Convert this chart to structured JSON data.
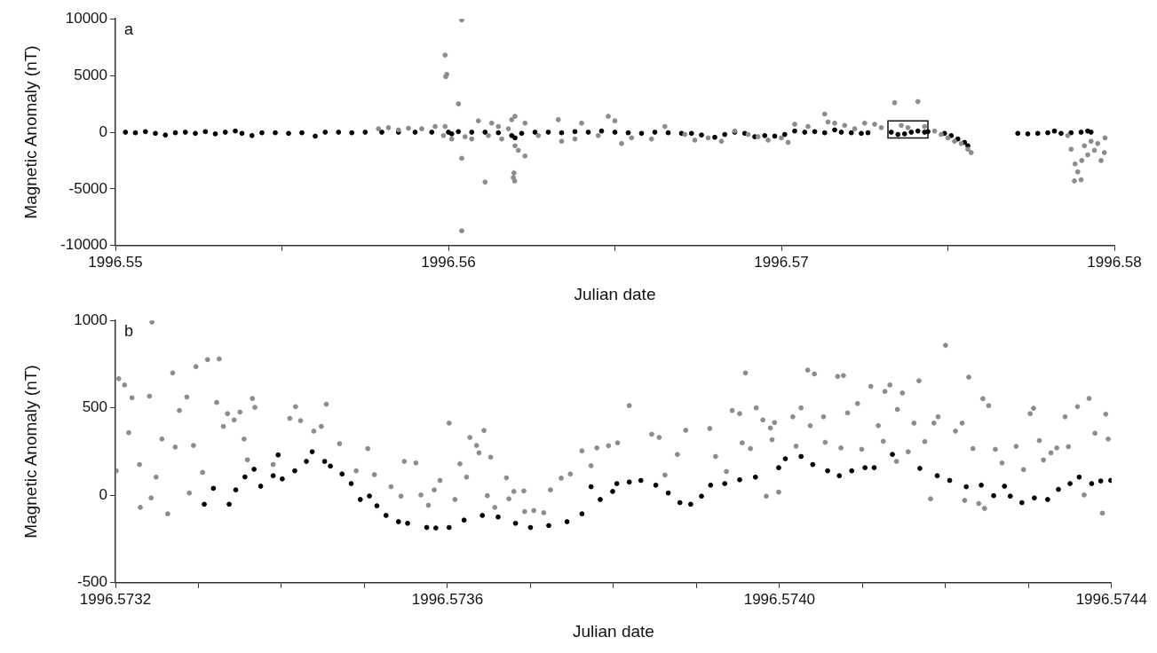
{
  "chart_data": [
    {
      "type": "scatter",
      "xlabel": "Julian date",
      "ylabel": "Magnetic Anomaly (nT)",
      "annotations": [
        "a"
      ],
      "marker": "circle",
      "legend": false,
      "grid": false,
      "xlim": [
        1996.55,
        1996.58
      ],
      "xticks": [
        1996.55,
        {
          "value": 1996.555,
          "label": null
        },
        1996.56,
        {
          "value": 1996.565,
          "label": null
        },
        1996.57,
        {
          "value": 1996.575,
          "label": null
        },
        1996.58
      ],
      "ylim": [
        -10000,
        10000
      ],
      "yticks": [
        -10000,
        -5000,
        0,
        5000,
        10000
      ],
      "series": [
        {
          "color": "#8c8c8c",
          "x": [
            1996.5579,
            1996.5582,
            1996.5585,
            1996.5588,
            1996.5592,
            1996.5596,
            1996.5599,
            1996.55992,
            1996.55995,
            1996.5599,
            1996.55985,
            1996.5603,
            1996.5604,
            1996.5604,
            1996.5604,
            1996.5601,
            1996.5605,
            1996.5607,
            1996.5609,
            1996.5611,
            1996.5612,
            1996.5613,
            1996.5615,
            1996.5616,
            1996.5618,
            1996.5619,
            1996.562,
            1996.56195,
            1996.56197,
            1996.56199,
            1996.562,
            1996.5621,
            1996.5623,
            1996.5623,
            1996.5627,
            1996.5633,
            1996.5634,
            1996.5638,
            1996.564,
            1996.5645,
            1996.5648,
            1996.565,
            1996.5652,
            1996.5655,
            1996.5661,
            1996.5665,
            1996.5671,
            1996.5674,
            1996.5678,
            1996.5682,
            1996.5686,
            1996.569,
            1996.5693,
            1996.5696,
            1996.57,
            1996.5702,
            1996.5704,
            1996.5708,
            1996.5713,
            1996.5714,
            1996.5716,
            1996.5719,
            1996.5722,
            1996.5725,
            1996.5728,
            1996.573,
            1996.5734,
            1996.5736,
            1996.5738,
            1996.5741,
            1996.5743,
            1996.5746,
            1996.5748,
            1996.575,
            1996.5752,
            1996.5754,
            1996.5756,
            1996.5757,
            1996.5786,
            1996.5787,
            1996.5788,
            1996.57882,
            1996.5789,
            1996.579,
            1996.57902,
            1996.5791,
            1996.5792,
            1996.5793,
            1996.5794,
            1996.5795,
            1996.5796,
            1996.5797,
            1996.57972
          ],
          "values": [
            300,
            400,
            200,
            350,
            300,
            500,
            6800,
            4900,
            5100,
            500,
            -300,
            2500,
            9900,
            -8700,
            -2300,
            -600,
            -400,
            -600,
            1000,
            -4400,
            -300,
            800,
            500,
            -600,
            300,
            1100,
            1400,
            -4000,
            -3600,
            -4300,
            -1200,
            -1600,
            800,
            -2100,
            -300,
            1100,
            -800,
            -600,
            800,
            -300,
            1400,
            1000,
            -1000,
            -500,
            -600,
            500,
            -200,
            -700,
            -500,
            -800,
            100,
            -200,
            -400,
            -700,
            -500,
            -900,
            700,
            500,
            1600,
            900,
            800,
            600,
            300,
            800,
            700,
            400,
            2600,
            600,
            400,
            2700,
            500,
            100,
            -200,
            -500,
            -800,
            -1000,
            -1500,
            -1800,
            -300,
            -1500,
            -4300,
            -2800,
            -3500,
            -4200,
            -2500,
            -1200,
            -2000,
            -800,
            -1600,
            -1000,
            -2500,
            -1800,
            -500
          ]
        },
        {
          "color": "#000000",
          "x": [
            1996.5503,
            1996.5506,
            1996.5509,
            1996.5512,
            1996.5515,
            1996.5518,
            1996.5521,
            1996.5524,
            1996.5527,
            1996.553,
            1996.5533,
            1996.5536,
            1996.5538,
            1996.5541,
            1996.5544,
            1996.5548,
            1996.5552,
            1996.5556,
            1996.556,
            1996.5563,
            1996.5567,
            1996.5571,
            1996.5575,
            1996.558,
            1996.5585,
            1996.559,
            1996.5595,
            1996.56,
            1996.5601,
            1996.5603,
            1996.5607,
            1996.5611,
            1996.5615,
            1996.5619,
            1996.562,
            1996.5622,
            1996.5626,
            1996.563,
            1996.5634,
            1996.5638,
            1996.5642,
            1996.5646,
            1996.565,
            1996.5654,
            1996.5658,
            1996.5662,
            1996.5666,
            1996.567,
            1996.5673,
            1996.5676,
            1996.568,
            1996.5683,
            1996.5686,
            1996.5689,
            1996.5692,
            1996.5695,
            1996.5698,
            1996.5701,
            1996.5704,
            1996.5707,
            1996.571,
            1996.5713,
            1996.5716,
            1996.5718,
            1996.5721,
            1996.5724,
            1996.5726,
            1996.5733,
            1996.5735,
            1996.5737,
            1996.5739,
            1996.5741,
            1996.5743,
            1996.5744,
            1996.5749,
            1996.5751,
            1996.5753,
            1996.5755,
            1996.5756,
            1996.5771,
            1996.5774,
            1996.5777,
            1996.578,
            1996.5782,
            1996.5784,
            1996.5787,
            1996.579,
            1996.5792,
            1996.5793
          ],
          "values": [
            0,
            -50,
            50,
            -100,
            -250,
            -50,
            0,
            -100,
            50,
            -150,
            0,
            100,
            -100,
            -300,
            -50,
            -50,
            -100,
            -50,
            -350,
            0,
            0,
            -50,
            0,
            0,
            0,
            0,
            0,
            0,
            -150,
            50,
            0,
            0,
            -50,
            -300,
            -500,
            -100,
            0,
            0,
            -50,
            50,
            0,
            100,
            0,
            -50,
            -100,
            0,
            -50,
            -100,
            -100,
            -250,
            -450,
            -200,
            0,
            -100,
            -400,
            -300,
            -350,
            -200,
            100,
            0,
            50,
            -50,
            200,
            0,
            -50,
            -100,
            -50,
            0,
            -200,
            -150,
            0,
            100,
            0,
            50,
            -100,
            -300,
            -600,
            -900,
            -1200,
            -100,
            -150,
            -100,
            -50,
            100,
            -100,
            -50,
            0,
            100,
            0
          ]
        }
      ]
    },
    {
      "type": "scatter",
      "xlabel": "Julian date",
      "ylabel": "Magnetic Anomaly (nT)",
      "annotations": [
        "b"
      ],
      "marker": "circle",
      "legend": false,
      "grid": false,
      "xlim": [
        1996.5732,
        1996.5744
      ],
      "xticks": [
        {
          "value": 1996.5732,
          "label": "1996.5732"
        },
        {
          "value": 1996.5733,
          "label": null
        },
        {
          "value": 1996.5734,
          "label": null
        },
        {
          "value": 1996.5735,
          "label": null
        },
        {
          "value": 1996.5736,
          "label": "1996.5736"
        },
        {
          "value": 1996.5737,
          "label": null
        },
        {
          "value": 1996.5738,
          "label": null
        },
        {
          "value": 1996.5739,
          "label": null
        },
        {
          "value": 1996.574,
          "label": "1996.5740"
        },
        {
          "value": 1996.5741,
          "label": null
        },
        {
          "value": 1996.5742,
          "label": null
        },
        {
          "value": 1996.5743,
          "label": null
        },
        {
          "value": 1996.5744,
          "label": "1996.5744"
        }
      ],
      "ylim": [
        -500,
        1000
      ],
      "yticks": [
        -500,
        0,
        500,
        1000
      ],
      "series": [
        {
          "color": "#8c8c8c",
          "x": [
            1996.573204,
            1996.573211,
            1996.57322,
            1996.573244,
            1996.573201,
            1996.573216,
            1996.573229,
            1996.57323,
            1996.573241,
            1996.573243,
            1996.573249,
            1996.573256,
            1996.573263,
            1996.573269,
            1996.573272,
            1996.573277,
            1996.573286,
            1996.573289,
            1996.573294,
            1996.573297,
            1996.573311,
            1996.573325,
            1996.573322,
            1996.573305,
            1996.57333,
            1996.573335,
            1996.573343,
            1996.57335,
            1996.573355,
            1996.573359,
            1996.573365,
            1996.573368,
            1996.57339,
            1996.57341,
            1996.573417,
            1996.573423,
            1996.573439,
            1996.573448,
            1996.573454,
            1996.57347,
            1996.57349,
            1996.573504,
            1996.573512,
            1996.573532,
            1996.573548,
            1996.573544,
            1996.573562,
            1996.573568,
            1996.573577,
            1996.573584,
            1996.573591,
            1996.573602,
            1996.573609,
            1996.573615,
            1996.573623,
            1996.573627,
            1996.573635,
            1996.573638,
            1996.573644,
            1996.573648,
            1996.573652,
            1996.573657,
            1996.573671,
            1996.573674,
            1996.57368,
            1996.573692,
            1996.573693,
            1996.573704,
            1996.573716,
            1996.573724,
            1996.573737,
            1996.573748,
            1996.573762,
            1996.573773,
            1996.57378,
            1996.573794,
            1996.573805,
            1996.573819,
            1996.573846,
            1996.573855,
            1996.573862,
            1996.573877,
            1996.573887,
            1996.573916,
            1996.573923,
            1996.573936,
            1996.573943,
            1996.573952,
            1996.573959,
            1996.573955,
            1996.573965,
            1996.573972,
            1996.57398,
            1996.573984,
            1996.573989,
            1996.573994,
            1996.573991,
            1996.573999,
            1996.574016,
            1996.57402,
            1996.574026,
            1996.574034,
            1996.574037,
            1996.574042,
            1996.574053,
            1996.574055,
            1996.57407,
            1996.574074,
            1996.574077,
            1996.574082,
            1996.574094,
            1996.574099,
            1996.57411,
            1996.574127,
            1996.574133,
            1996.574125,
            1996.574119,
            1996.574142,
            1996.574148,
            1996.574141,
            1996.574155,
            1996.574162,
            1996.574168,
            1996.574175,
            1996.574182,
            1996.574186,
            1996.574191,
            1996.5742,
            1996.574212,
            1996.57422,
            1996.574223,
            1996.574228,
            1996.574233,
            1996.57424,
            1996.574245,
            1996.574247,
            1996.574252,
            1996.57426,
            1996.574268,
            1996.574285,
            1996.574294,
            1996.574302,
            1996.574306,
            1996.574313,
            1996.574318,
            1996.574327,
            1996.574334,
            1996.574344,
            1996.574348,
            1996.574359,
            1996.574367,
            1996.574373,
            1996.57438,
            1996.574389,
            1996.574393,
            1996.574396
          ],
          "values": [
            667,
            631,
            558,
            991,
            140,
            358,
            176,
            -69,
            567,
            -15,
            104,
            322,
            -106,
            700,
            276,
            485,
            562,
            13,
            285,
            736,
            776,
            780,
            531,
            131,
            394,
            467,
            431,
            476,
            322,
            203,
            554,
            503,
            176,
            440,
            507,
            427,
            367,
            394,
            521,
            295,
            140,
            267,
            118,
            49,
            194,
            -5,
            185,
            2,
            -57,
            31,
            85,
            413,
            -24,
            180,
            104,
            331,
            285,
            243,
            371,
            -2,
            218,
            -69,
            100,
            -20,
            22,
            25,
            -93,
            -87,
            -100,
            31,
            98,
            122,
            254,
            169,
            271,
            284,
            300,
            513,
            349,
            331,
            116,
            234,
            372,
            382,
            222,
            136,
            485,
            467,
            700,
            300,
            267,
            500,
            431,
            -5,
            385,
            416,
            318,
            18,
            449,
            281,
            500,
            716,
            398,
            694,
            449,
            303,
            680,
            271,
            685,
            471,
            525,
            263,
            623,
            594,
            631,
            309,
            398,
            491,
            585,
            194,
            249,
            413,
            655,
            307,
            -20,
            413,
            449,
            858,
            367,
            413,
            -29,
            676,
            267,
            -47,
            553,
            -75,
            513,
            263,
            185,
            280,
            147,
            467,
            498,
            313,
            202,
            243,
            271,
            449,
            278,
            507,
            2,
            554,
            355,
            -102,
            464,
            322
          ]
        },
        {
          "color": "#000000",
          "x": [
            1996.573307,
            1996.573318,
            1996.573337,
            1996.573345,
            1996.573356,
            1996.573367,
            1996.573375,
            1996.57339,
            1996.573396,
            1996.573401,
            1996.573416,
            1996.57343,
            1996.573437,
            1996.573452,
            1996.573459,
            1996.573473,
            1996.573484,
            1996.573495,
            1996.573506,
            1996.573515,
            1996.573526,
            1996.573541,
            1996.573552,
            1996.573575,
            1996.573586,
            1996.573602,
            1996.57362,
            1996.573642,
            1996.573661,
            1996.573682,
            1996.5737,
            1996.573722,
            1996.573744,
            1996.573762,
            1996.573773,
            1996.573784,
            1996.573799,
            1996.573804,
            1996.573819,
            1996.573833,
            1996.573851,
            1996.573866,
            1996.57388,
            1996.573893,
            1996.573906,
            1996.573917,
            1996.573934,
            1996.573952,
            1996.573971,
            1996.573999,
            1996.574007,
            1996.574026,
            1996.57404,
            1996.574058,
            1996.574072,
            1996.574087,
            1996.574103,
            1996.574114,
            1996.574136,
            1996.574169,
            1996.57419,
            1996.574205,
            1996.574225,
            1996.574243,
            1996.574258,
            1996.574271,
            1996.574278,
            1996.574292,
            1996.574307,
            1996.574323,
            1996.574336,
            1996.57435,
            1996.574361,
            1996.574376,
            1996.574387,
            1996.574399
          ],
          "values": [
            -51,
            40,
            -51,
            31,
            105,
            149,
            52,
            112,
            231,
            94,
            140,
            194,
            249,
            194,
            167,
            122,
            67,
            -24,
            -4,
            -60,
            -115,
            -151,
            -160,
            -184,
            -187,
            -184,
            -142,
            -115,
            -124,
            -160,
            -184,
            -173,
            -151,
            -106,
            49,
            -24,
            22,
            67,
            76,
            85,
            58,
            13,
            -42,
            -51,
            -5,
            58,
            67,
            89,
            104,
            158,
            209,
            222,
            176,
            140,
            112,
            140,
            158,
            158,
            234,
            154,
            112,
            85,
            49,
            58,
            -2,
            52,
            -5,
            -42,
            -15,
            -24,
            34,
            67,
            104,
            67,
            82,
            85
          ]
        }
      ]
    }
  ]
}
